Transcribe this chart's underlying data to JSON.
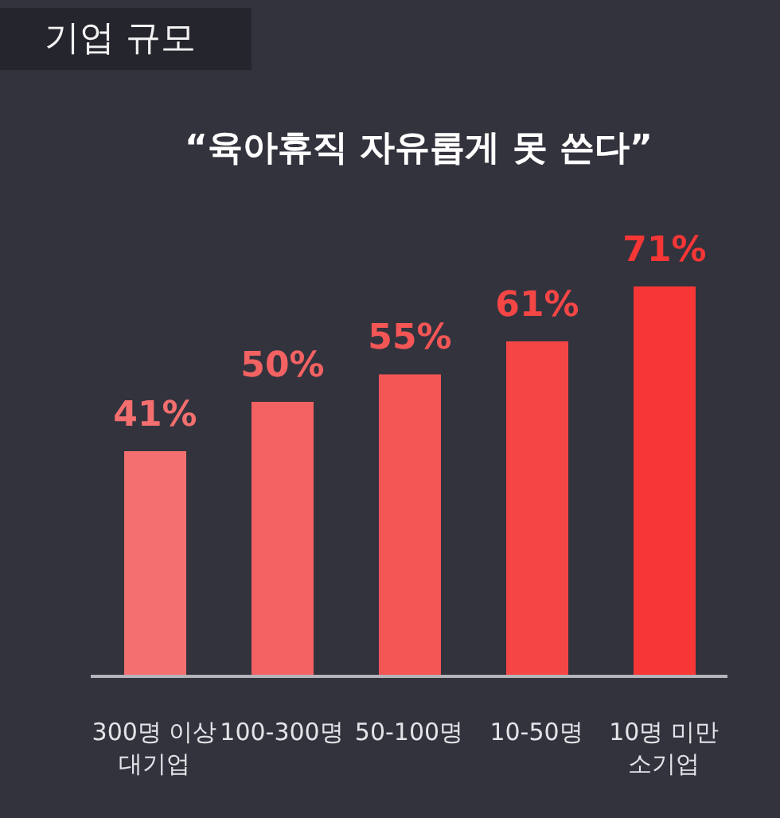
{
  "chart_data": {
    "type": "bar",
    "title": "기업 규모",
    "subtitle": "“육아휴직 자유롭게 못 쓴다”",
    "categories": [
      "300명 이상\n대기업",
      "100-300명",
      "50-100명",
      "10-50명",
      "10명 미만\n소기업"
    ],
    "values": [
      41,
      50,
      55,
      61,
      71
    ],
    "colors": [
      "#f46f6f",
      "#f36262",
      "#f45656",
      "#f54646",
      "#f73636"
    ],
    "value_labels": [
      "41%",
      "50%",
      "55%",
      "61%",
      "71%"
    ]
  }
}
